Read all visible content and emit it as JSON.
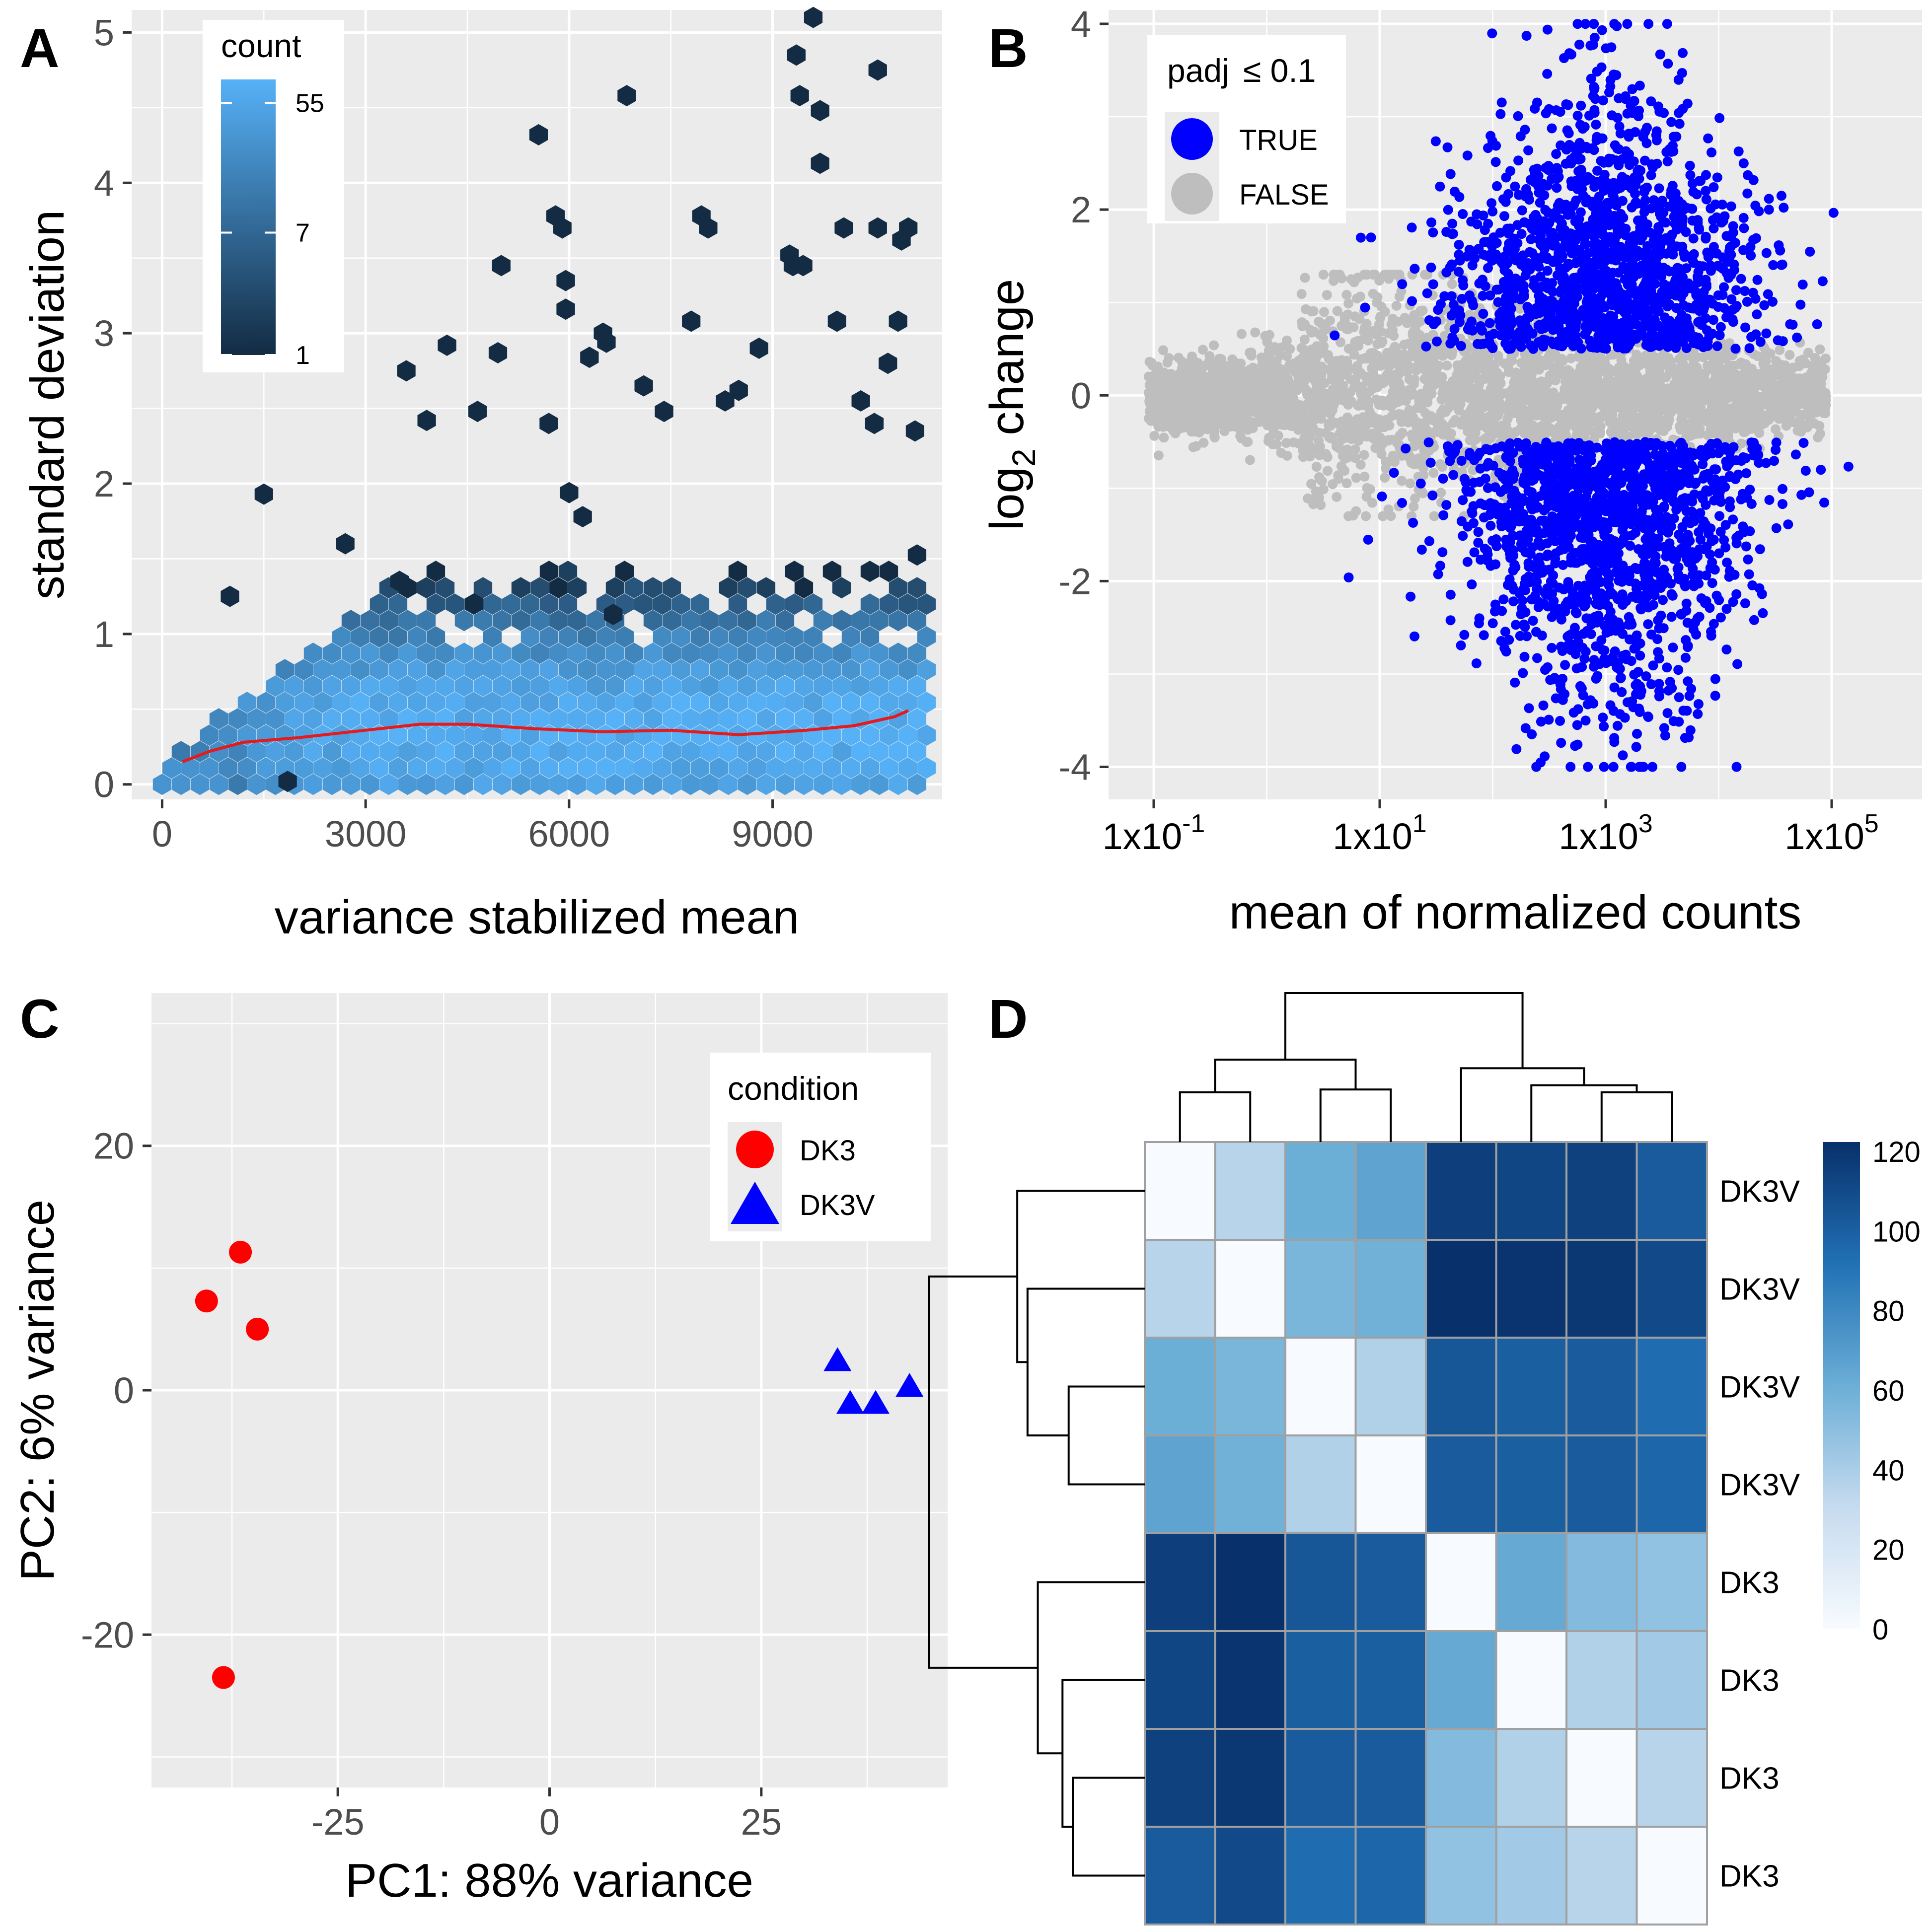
{
  "figure": {
    "panel_letters": [
      "A",
      "B",
      "C",
      "D"
    ]
  },
  "colors": {
    "panel_bg": "#ebebeb",
    "grid": "#ffffff",
    "hex_low": "#132b43",
    "hex_high": "#56b1f7",
    "trend": "#e41a1c",
    "sig_true": "#0000ff",
    "sig_false": "#bebebe",
    "dk3": "#ff0000",
    "dk3v": "#0000ff",
    "heat_low": "#f7fbff",
    "heat_high": "#08306b"
  },
  "chart_data": [
    {
      "panel": "A",
      "type": "hexbin",
      "xlabel": "variance stabilized mean",
      "ylabel": "standard deviation",
      "xlim": [
        -450,
        11500
      ],
      "ylim": [
        -0.1,
        5.15
      ],
      "x_ticks": [
        0,
        3000,
        6000,
        9000
      ],
      "x_tick_labels": [
        "0",
        "3000",
        "6000",
        "9000"
      ],
      "y_ticks": [
        0,
        1,
        2,
        3,
        4,
        5
      ],
      "y_tick_labels": [
        "0",
        "1",
        "2",
        "3",
        "4",
        "5"
      ],
      "legend": {
        "title": "count",
        "position": "top-left",
        "breaks": [
          1,
          7,
          55
        ],
        "labels": [
          "1",
          "7",
          "55"
        ],
        "max_count": 80
      },
      "trend_line": {
        "x": [
          300,
          700,
          1200,
          2000,
          3000,
          3800,
          4500,
          5500,
          6500,
          7500,
          8500,
          9500,
          10200,
          10800,
          11000
        ],
        "y": [
          0.15,
          0.22,
          0.28,
          0.31,
          0.36,
          0.4,
          0.4,
          0.37,
          0.35,
          0.36,
          0.33,
          0.36,
          0.39,
          0.45,
          0.49
        ]
      },
      "outliers": [
        [
          9600,
          5.1
        ],
        [
          9350,
          4.85
        ],
        [
          10550,
          4.75
        ],
        [
          6850,
          4.58
        ],
        [
          9400,
          4.58
        ],
        [
          9700,
          4.48
        ],
        [
          5550,
          4.32
        ],
        [
          9700,
          4.13
        ],
        [
          5800,
          3.78
        ],
        [
          7950,
          3.78
        ],
        [
          5900,
          3.7
        ],
        [
          8050,
          3.7
        ],
        [
          10050,
          3.7
        ],
        [
          10550,
          3.7
        ],
        [
          11000,
          3.7
        ],
        [
          9250,
          3.52
        ],
        [
          5000,
          3.45
        ],
        [
          9300,
          3.45
        ],
        [
          9450,
          3.45
        ],
        [
          10900,
          3.62
        ],
        [
          5950,
          3.35
        ],
        [
          5950,
          3.16
        ],
        [
          9950,
          3.08
        ],
        [
          7800,
          3.08
        ],
        [
          10850,
          3.08
        ],
        [
          6500,
          3.0
        ],
        [
          6550,
          2.94
        ],
        [
          4200,
          2.92
        ],
        [
          3600,
          2.75
        ],
        [
          1500,
          1.93
        ],
        [
          1000,
          1.25
        ],
        [
          6200,
          1.78
        ],
        [
          6000,
          1.94
        ],
        [
          6300,
          2.84
        ],
        [
          7100,
          2.65
        ],
        [
          7400,
          2.48
        ],
        [
          4650,
          2.48
        ],
        [
          3900,
          2.42
        ],
        [
          5700,
          2.4
        ],
        [
          8500,
          2.62
        ],
        [
          4950,
          2.87
        ],
        [
          8800,
          2.9
        ],
        [
          10700,
          2.8
        ],
        [
          10300,
          2.55
        ],
        [
          10500,
          2.4
        ],
        [
          6650,
          1.13
        ],
        [
          4600,
          1.2
        ],
        [
          3500,
          1.35
        ],
        [
          2700,
          1.6
        ],
        [
          11100,
          2.35
        ],
        [
          8300,
          2.55
        ],
        [
          1850,
          0.02
        ]
      ]
    },
    {
      "panel": "B",
      "type": "scatter",
      "xlabel": "mean of normalized counts",
      "ylabel_main": "log",
      "ylabel_sub": "2",
      "ylabel_rest": " change",
      "x_scale": "log10",
      "xlim_log10": [
        -1.4,
        5.8
      ],
      "ylim": [
        -4.35,
        4.15
      ],
      "x_ticks_log10": [
        -1,
        1,
        3,
        5
      ],
      "x_tick_base": [
        "1x10",
        "1x10",
        "1x10",
        "1x10"
      ],
      "x_tick_exp": [
        "-1",
        "1",
        "3",
        "5"
      ],
      "y_ticks": [
        -4,
        -2,
        0,
        2,
        4
      ],
      "y_tick_labels": [
        "-4",
        "-2",
        "0",
        "2",
        "4"
      ],
      "legend": {
        "title": "padj",
        "title_rest": "≤ 0.1",
        "position": "top-left",
        "entries": [
          "TRUE",
          "FALSE"
        ]
      },
      "cloud_summary": {
        "n_not_significant": 3400,
        "n_significant": 3000,
        "sig_center_log10": 3.0,
        "sig_abs_lfc_range": [
          0.5,
          4.0
        ]
      }
    },
    {
      "panel": "C",
      "type": "scatter",
      "xlabel": "PC1: 88% variance",
      "ylabel": "PC2: 6% variance",
      "xlim": [
        -47,
        47
      ],
      "ylim": [
        -32.5,
        32.5
      ],
      "x_ticks": [
        -25,
        0,
        25
      ],
      "x_tick_labels": [
        "-25",
        "0",
        "25"
      ],
      "y_ticks": [
        -20,
        0,
        20
      ],
      "y_tick_labels": [
        "-20",
        "0",
        "20"
      ],
      "legend": {
        "title": "condition",
        "position": "top-right",
        "entries": [
          "DK3",
          "DK3V"
        ]
      },
      "series": [
        {
          "name": "DK3",
          "shape": "circle",
          "points": [
            [
              -36.5,
              11.3
            ],
            [
              -40.5,
              7.3
            ],
            [
              -34.5,
              5.0
            ],
            [
              -38.5,
              -23.5
            ]
          ]
        },
        {
          "name": "DK3V",
          "shape": "triangle",
          "points": [
            [
              34,
              2.3
            ],
            [
              35.5,
              -1.2
            ],
            [
              38.5,
              -1.2
            ],
            [
              42.5,
              0.2
            ]
          ]
        }
      ]
    },
    {
      "panel": "D",
      "type": "heatmap",
      "row_labels": [
        "DK3V",
        "DK3V",
        "DK3V",
        "DK3V",
        "DK3",
        "DK3",
        "DK3",
        "DK3"
      ],
      "colorbar": {
        "min": 0,
        "max": 120,
        "ticks": [
          0,
          20,
          40,
          60,
          80,
          100,
          120
        ],
        "tick_labels": [
          "0",
          "20",
          "40",
          "60",
          "80",
          "100",
          "120"
        ]
      },
      "matrix": [
        [
          0,
          35,
          60,
          65,
          113,
          110,
          112,
          100
        ],
        [
          35,
          0,
          55,
          58,
          120,
          118,
          117,
          108
        ],
        [
          60,
          55,
          0,
          37,
          102,
          98,
          100,
          92
        ],
        [
          65,
          58,
          37,
          0,
          100,
          98,
          100,
          95
        ],
        [
          113,
          120,
          102,
          100,
          0,
          62,
          52,
          47
        ],
        [
          110,
          118,
          98,
          98,
          62,
          0,
          37,
          42
        ],
        [
          112,
          117,
          100,
          100,
          52,
          37,
          0,
          35
        ],
        [
          100,
          108,
          92,
          95,
          47,
          42,
          35,
          0
        ]
      ],
      "column_dendrogram": {
        "merges": [
          [
            [
              0
            ],
            [
              1
            ],
            35
          ],
          [
            [
              2
            ],
            [
              3
            ],
            37
          ],
          [
            [
              0,
              1
            ],
            [
              2,
              3
            ],
            58
          ],
          [
            [
              6
            ],
            [
              7
            ],
            35
          ],
          [
            [
              5
            ],
            [
              6,
              7
            ],
            40
          ],
          [
            [
              4
            ],
            [
              5,
              6,
              7
            ],
            52
          ],
          [
            [
              0,
              1,
              2,
              3
            ],
            [
              4,
              5,
              6,
              7
            ],
            105
          ]
        ]
      },
      "row_dendrogram": {
        "merges": [
          [
            [
              2
            ],
            [
              3
            ],
            37
          ],
          [
            [
              1
            ],
            [
              2,
              3
            ],
            57
          ],
          [
            [
              0
            ],
            [
              1,
              2,
              3
            ],
            62
          ],
          [
            [
              6
            ],
            [
              7
            ],
            35
          ],
          [
            [
              5
            ],
            [
              6,
              7
            ],
            40
          ],
          [
            [
              4
            ],
            [
              5,
              6,
              7
            ],
            52
          ],
          [
            [
              0,
              1,
              2,
              3
            ],
            [
              4,
              5,
              6,
              7
            ],
            105
          ]
        ]
      }
    }
  ]
}
